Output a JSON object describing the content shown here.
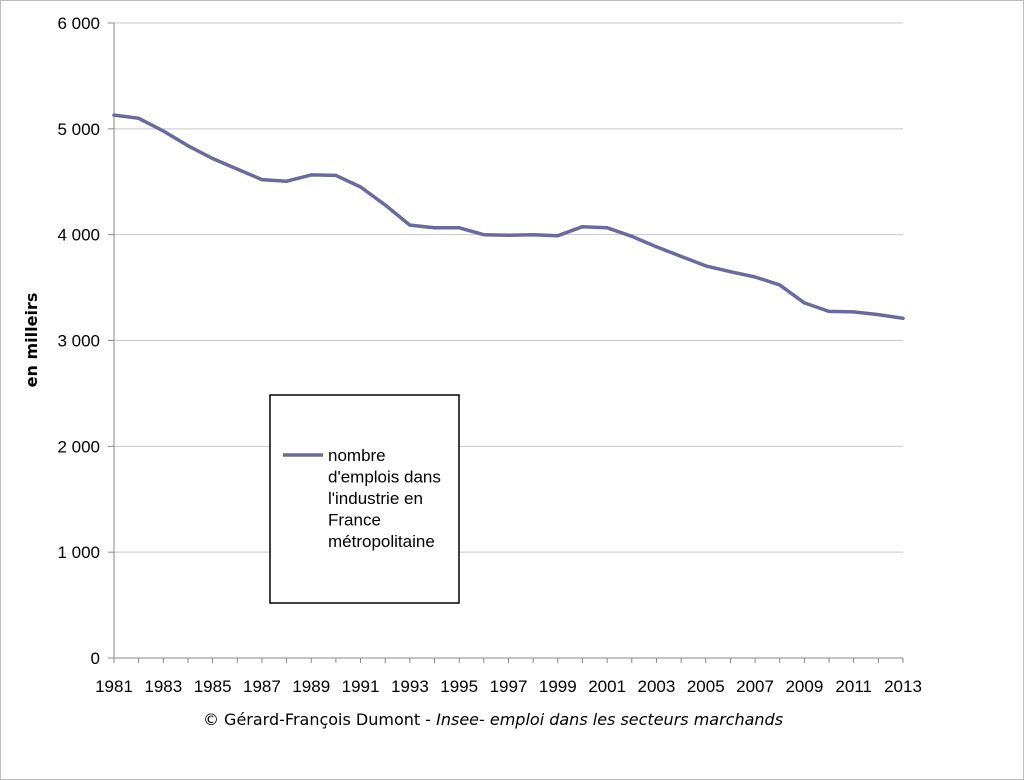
{
  "chart_data": {
    "type": "line",
    "title": "",
    "ylabel": "en milleirs",
    "xlabel": "",
    "ylim": [
      0,
      6000
    ],
    "y_ticks": [
      "0",
      "1 000",
      "2 000",
      "3 000",
      "4 000",
      "5 000",
      "6 000"
    ],
    "y_tick_values": [
      0,
      1000,
      2000,
      3000,
      4000,
      5000,
      6000
    ],
    "x_ticks": [
      "1981",
      "1983",
      "1985",
      "1987",
      "1989",
      "1991",
      "1993",
      "1995",
      "1997",
      "1999",
      "2001",
      "2003",
      "2005",
      "2007",
      "2009",
      "2011",
      "2013"
    ],
    "grid": "horizontal",
    "legend_placement": "center-left",
    "series": [
      {
        "name": "nombre d'emplois dans l'industrie en France métropolitaine",
        "name_lines": [
          "nombre",
          "d'emplois dans",
          "l'industrie en",
          "France",
          "métropolitaine"
        ],
        "color": "#6a6a9e",
        "x": [
          1981,
          1982,
          1983,
          1984,
          1985,
          1986,
          1987,
          1988,
          1989,
          1990,
          1991,
          1992,
          1993,
          1994,
          1995,
          1996,
          1997,
          1998,
          1999,
          2000,
          2001,
          2002,
          2003,
          2004,
          2005,
          2006,
          2007,
          2008,
          2009,
          2010,
          2011,
          2012,
          2013
        ],
        "values": [
          5130,
          5100,
          4980,
          4840,
          4720,
          4620,
          4520,
          4505,
          4565,
          4560,
          4450,
          4280,
          4090,
          4065,
          4065,
          4000,
          3995,
          4000,
          3990,
          4075,
          4065,
          3985,
          3885,
          3795,
          3705,
          3650,
          3600,
          3525,
          3355,
          3275,
          3270,
          3245,
          3210
        ]
      }
    ]
  },
  "credit": {
    "prefix": "© Gérard-François Dumont - ",
    "source": "Insee- emploi dans les secteurs marchands"
  }
}
